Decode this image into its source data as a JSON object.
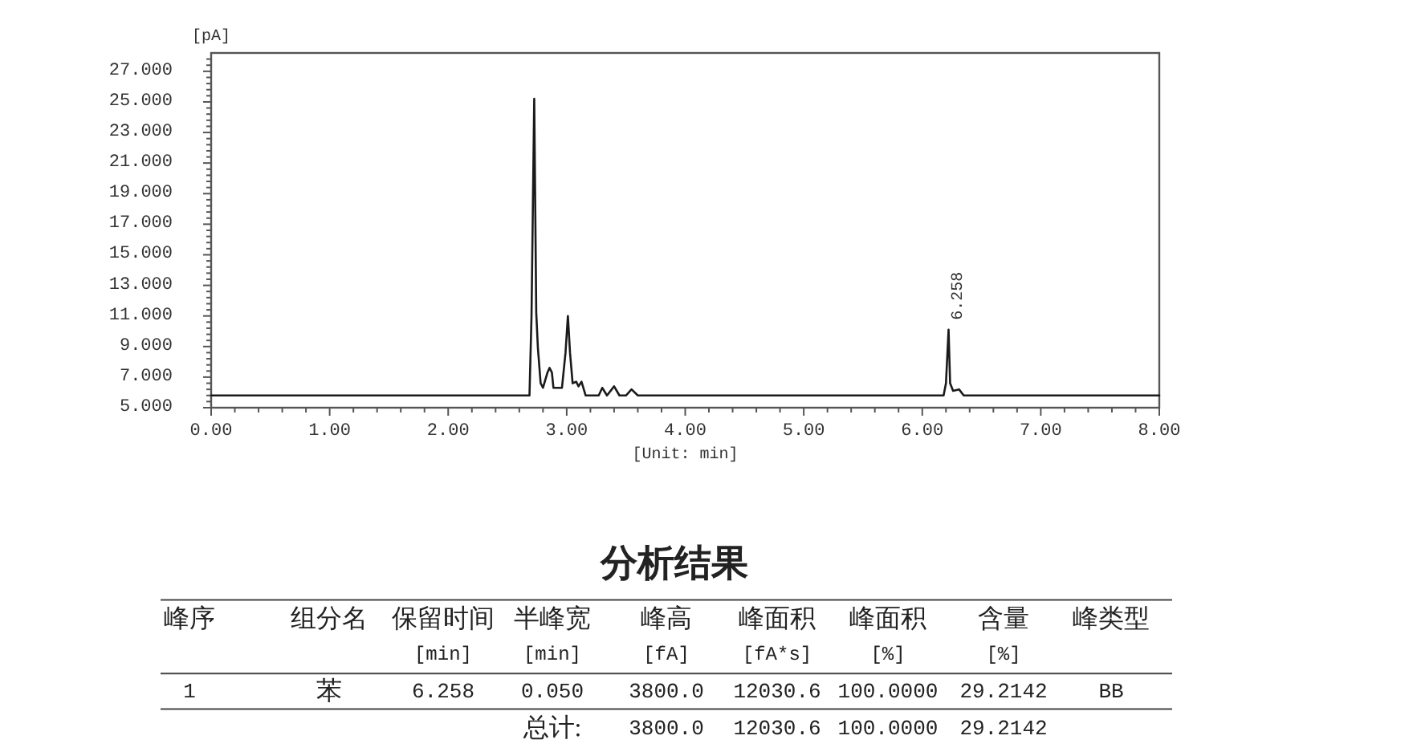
{
  "chart_data": [
    {
      "type": "line",
      "xlabel": "[Unit: min]",
      "ylabel": "[pA]",
      "color": "#1a1a1a",
      "x": [
        0,
        2.686,
        2.703,
        2.726,
        2.743,
        2.757,
        2.78,
        2.8,
        2.838,
        2.855,
        2.875,
        2.888,
        2.96,
        2.99,
        3.01,
        3.028,
        3.05,
        3.08,
        3.1,
        3.125,
        3.16,
        3.27,
        3.3,
        3.34,
        3.4,
        3.445,
        3.5,
        3.547,
        3.6,
        6.18,
        6.2,
        6.222,
        6.235,
        6.26,
        6.31,
        6.35,
        8
      ],
      "values": [
        5.8,
        5.8,
        11.0,
        25.2,
        11.2,
        8.9,
        6.6,
        6.3,
        7.3,
        7.6,
        7.3,
        6.3,
        6.3,
        8.6,
        11.0,
        8.6,
        6.6,
        6.7,
        6.4,
        6.7,
        5.8,
        5.8,
        6.3,
        5.8,
        6.4,
        5.8,
        5.8,
        6.2,
        5.8,
        5.8,
        6.6,
        10.1,
        6.6,
        6.1,
        6.2,
        5.8,
        5.8
      ],
      "xlim": [
        0,
        8
      ],
      "ylim": [
        5,
        28.2
      ],
      "xticks": [
        {
          "value": 0,
          "label": "0.00"
        },
        {
          "value": 0.2,
          "label": null
        },
        {
          "value": 0.4,
          "label": null
        },
        {
          "value": 0.6,
          "label": null
        },
        {
          "value": 0.8,
          "label": null
        },
        {
          "value": 1,
          "label": "1.00"
        },
        {
          "value": 1.2,
          "label": null
        },
        {
          "value": 1.4,
          "label": null
        },
        {
          "value": 1.6,
          "label": null
        },
        {
          "value": 1.8,
          "label": null
        },
        {
          "value": 2,
          "label": "2.00"
        },
        {
          "value": 2.2,
          "label": null
        },
        {
          "value": 2.4,
          "label": null
        },
        {
          "value": 2.6,
          "label": null
        },
        {
          "value": 2.8,
          "label": null
        },
        {
          "value": 3,
          "label": "3.00"
        },
        {
          "value": 3.2,
          "label": null
        },
        {
          "value": 3.4,
          "label": null
        },
        {
          "value": 3.6,
          "label": null
        },
        {
          "value": 3.8,
          "label": null
        },
        {
          "value": 4,
          "label": "4.00"
        },
        {
          "value": 4.2,
          "label": null
        },
        {
          "value": 4.4,
          "label": null
        },
        {
          "value": 4.6,
          "label": null
        },
        {
          "value": 4.8,
          "label": null
        },
        {
          "value": 5,
          "label": "5.00"
        },
        {
          "value": 5.2,
          "label": null
        },
        {
          "value": 5.4,
          "label": null
        },
        {
          "value": 5.6,
          "label": null
        },
        {
          "value": 5.8,
          "label": null
        },
        {
          "value": 6,
          "label": "6.00"
        },
        {
          "value": 6.2,
          "label": null
        },
        {
          "value": 6.4,
          "label": null
        },
        {
          "value": 6.6,
          "label": null
        },
        {
          "value": 6.8,
          "label": null
        },
        {
          "value": 7,
          "label": "7.00"
        },
        {
          "value": 7.2,
          "label": null
        },
        {
          "value": 7.4,
          "label": null
        },
        {
          "value": 7.6,
          "label": null
        },
        {
          "value": 7.8,
          "label": null
        },
        {
          "value": 8,
          "label": "8.00"
        }
      ],
      "yticks": [
        {
          "value": 5,
          "label": "5.000"
        },
        {
          "value": 5.4,
          "label": null
        },
        {
          "value": 5.8,
          "label": null
        },
        {
          "value": 6.2,
          "label": null
        },
        {
          "value": 6.6,
          "label": null
        },
        {
          "value": 7,
          "label": "7.000"
        },
        {
          "value": 7.4,
          "label": null
        },
        {
          "value": 7.8,
          "label": null
        },
        {
          "value": 8.2,
          "label": null
        },
        {
          "value": 8.6,
          "label": null
        },
        {
          "value": 9,
          "label": "9.000"
        },
        {
          "value": 9.4,
          "label": null
        },
        {
          "value": 9.8,
          "label": null
        },
        {
          "value": 10.2,
          "label": null
        },
        {
          "value": 10.6,
          "label": null
        },
        {
          "value": 11,
          "label": "11.000"
        },
        {
          "value": 11.4,
          "label": null
        },
        {
          "value": 11.8,
          "label": null
        },
        {
          "value": 12.2,
          "label": null
        },
        {
          "value": 12.6,
          "label": null
        },
        {
          "value": 13,
          "label": "13.000"
        },
        {
          "value": 13.4,
          "label": null
        },
        {
          "value": 13.8,
          "label": null
        },
        {
          "value": 14.2,
          "label": null
        },
        {
          "value": 14.6,
          "label": null
        },
        {
          "value": 15,
          "label": "15.000"
        },
        {
          "value": 15.4,
          "label": null
        },
        {
          "value": 15.8,
          "label": null
        },
        {
          "value": 16.2,
          "label": null
        },
        {
          "value": 16.6,
          "label": null
        },
        {
          "value": 17,
          "label": "17.000"
        },
        {
          "value": 17.4,
          "label": null
        },
        {
          "value": 17.8,
          "label": null
        },
        {
          "value": 18.2,
          "label": null
        },
        {
          "value": 18.6,
          "label": null
        },
        {
          "value": 19,
          "label": "19.000"
        },
        {
          "value": 19.4,
          "label": null
        },
        {
          "value": 19.8,
          "label": null
        },
        {
          "value": 20.2,
          "label": null
        },
        {
          "value": 20.6,
          "label": null
        },
        {
          "value": 21,
          "label": "21.000"
        },
        {
          "value": 21.4,
          "label": null
        },
        {
          "value": 21.8,
          "label": null
        },
        {
          "value": 22.2,
          "label": null
        },
        {
          "value": 22.6,
          "label": null
        },
        {
          "value": 23,
          "label": "23.000"
        },
        {
          "value": 23.4,
          "label": null
        },
        {
          "value": 23.8,
          "label": null
        },
        {
          "value": 24.2,
          "label": null
        },
        {
          "value": 24.6,
          "label": null
        },
        {
          "value": 25,
          "label": "25.000"
        },
        {
          "value": 25.4,
          "label": null
        },
        {
          "value": 25.8,
          "label": null
        },
        {
          "value": 26.2,
          "label": null
        },
        {
          "value": 26.6,
          "label": null
        },
        {
          "value": 27,
          "label": "27.000"
        },
        {
          "value": 27.4,
          "label": null
        },
        {
          "value": 27.8,
          "label": null
        }
      ],
      "annotations": [
        {
          "text": "6.258",
          "x": 6.222,
          "y": 10.1
        }
      ]
    },
    {
      "type": "other",
      "title": "分析结果",
      "annotations": [
        "峰序",
        "组分名",
        "保留时间",
        "半峰宽",
        "峰高",
        "峰面积",
        "峰面积",
        "含量",
        "峰类型",
        "[min]",
        "[min]",
        "[fA]",
        "[fA*s]",
        "[%]",
        "[%]",
        "1",
        "苯",
        "6.258",
        "0.050",
        "3800.0",
        "12030.6",
        "100.0000",
        "29.2142",
        "BB",
        "总计:",
        "3800.0",
        "12030.6",
        "100.0000",
        "29.2142"
      ]
    }
  ]
}
